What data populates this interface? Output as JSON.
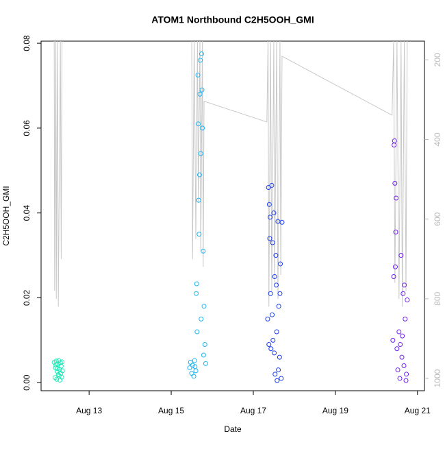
{
  "chart_data": {
    "type": "scatter",
    "title": "ATOM1 Northbound C2H5OOH_GMI",
    "x_label": "Date",
    "y_label": "C2H5OOH_GMI",
    "xlim": [
      11.83,
      21.17
    ],
    "xticks": [
      {
        "value": 13,
        "label": "Aug 13"
      },
      {
        "value": 15,
        "label": "Aug 15"
      },
      {
        "value": 17,
        "label": "Aug 17"
      },
      {
        "value": 19,
        "label": "Aug 19"
      },
      {
        "value": 21,
        "label": "Aug 21"
      }
    ],
    "ylim": [
      -0.0019,
      0.0805
    ],
    "yticks": [
      {
        "value": 0,
        "label": "0.00"
      },
      0.02,
      0.04,
      0.06,
      0.08
    ],
    "y2lim": [
      1031,
      153
    ],
    "y2ticks": [
      200,
      400,
      600,
      800,
      1000
    ],
    "series": [
      {
        "type": "line",
        "axis": "y2",
        "color": "#c8c8c8",
        "x": [
          12.15,
          12.16,
          12.19,
          12.2,
          12.23,
          12.25,
          12.3,
          12.32,
          12.34,
          12.4,
          15.5,
          15.52,
          15.56,
          15.6,
          15.64,
          15.66,
          15.7,
          15.72,
          15.76,
          15.78,
          15.8,
          17.33,
          17.36,
          17.38,
          17.42,
          17.45,
          17.5,
          17.52,
          17.57,
          17.6,
          17.65,
          17.67,
          17.7,
          20.38,
          20.42,
          20.45,
          20.5,
          20.55,
          20.6,
          20.63,
          20.68,
          20.72,
          20.75
        ],
        "values": [
          150,
          780,
          150,
          800,
          150,
          820,
          150,
          700,
          150,
          null,
          150,
          700,
          150,
          650,
          150,
          560,
          150,
          680,
          150,
          720,
          304,
          356,
          150,
          820,
          150,
          780,
          150,
          760,
          150,
          800,
          150,
          740,
          191,
          339,
          150,
          760,
          150,
          800,
          150,
          820,
          150,
          780,
          150
        ]
      },
      {
        "color": "#1de9b6",
        "x": [
          12.15,
          12.17,
          12.18,
          12.2,
          12.21,
          12.22,
          12.24,
          12.25,
          12.26,
          12.28,
          12.29,
          12.3,
          12.31,
          12.32,
          12.33,
          12.34,
          12.35,
          12.19,
          12.27,
          12.23
        ],
        "values": [
          0.0048,
          0.0012,
          0.0035,
          0.0051,
          0.0008,
          0.0027,
          0.0044,
          0.0019,
          0.0052,
          0.0031,
          0.0006,
          0.0047,
          0.0022,
          0.0039,
          0.0013,
          0.0049,
          0.0028,
          0.0042,
          0.0016,
          0.0033
        ]
      },
      {
        "color": "#1fb4f0",
        "x": [
          15.45,
          15.47,
          15.5,
          15.52,
          15.55,
          15.57,
          15.6,
          15.62,
          15.63,
          15.65,
          15.66,
          15.67,
          15.68,
          15.7,
          15.71,
          15.72,
          15.73,
          15.75,
          15.76,
          15.78,
          15.8,
          15.82,
          15.84,
          15.69,
          15.74,
          15.58,
          15.61,
          15.79
        ],
        "values": [
          0.0035,
          0.0048,
          0.0022,
          0.0041,
          0.0015,
          0.0052,
          0.0028,
          0.0233,
          0.012,
          0.0725,
          0.061,
          0.043,
          0.035,
          0.068,
          0.076,
          0.054,
          0.015,
          0.069,
          0.06,
          0.031,
          0.018,
          0.009,
          0.0045,
          0.049,
          0.0775,
          0.0038,
          0.021,
          0.0065
        ]
      },
      {
        "color": "#1a3cf0",
        "x": [
          17.35,
          17.37,
          17.39,
          17.4,
          17.42,
          17.43,
          17.45,
          17.47,
          17.48,
          17.5,
          17.52,
          17.53,
          17.55,
          17.57,
          17.58,
          17.6,
          17.62,
          17.64,
          17.66,
          17.68,
          17.7,
          17.41,
          17.46,
          17.51,
          17.56,
          17.61,
          17.38,
          17.65
        ],
        "values": [
          0.015,
          0.046,
          0.042,
          0.034,
          0.021,
          0.008,
          0.0465,
          0.033,
          0.01,
          0.04,
          0.025,
          0.002,
          0.03,
          0.012,
          0.0005,
          0.038,
          0.018,
          0.006,
          0.028,
          0.001,
          0.0378,
          0.039,
          0.016,
          0.007,
          0.023,
          0.003,
          0.009,
          0.021
        ]
      },
      {
        "color": "#7020f0",
        "x": [
          20.4,
          20.42,
          20.44,
          20.45,
          20.47,
          20.5,
          20.52,
          20.55,
          20.57,
          20.6,
          20.62,
          20.65,
          20.67,
          20.7,
          20.72,
          20.75,
          20.43,
          20.48,
          20.58,
          20.68,
          20.73,
          20.46,
          20.63
        ],
        "values": [
          0.01,
          0.025,
          0.057,
          0.047,
          0.0355,
          0.008,
          0.003,
          0.012,
          0.001,
          0.03,
          0.006,
          0.021,
          0.004,
          0.015,
          0.0005,
          0.0195,
          0.056,
          0.0435,
          0.009,
          0.023,
          0.002,
          0.0273,
          0.011
        ]
      }
    ]
  }
}
